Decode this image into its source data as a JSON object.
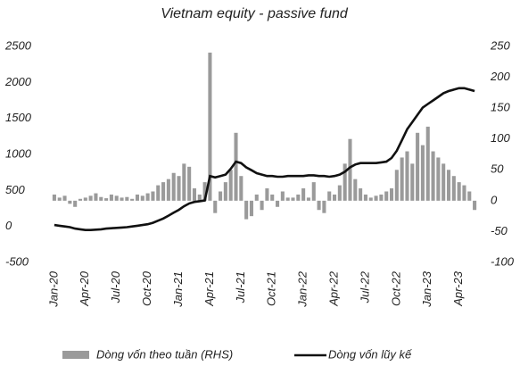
{
  "chart_data": {
    "type": "combo",
    "title": "Vietnam equity - passive fund",
    "categories": [
      "Jan-20",
      null,
      null,
      null,
      null,
      null,
      "Apr-20",
      null,
      null,
      null,
      null,
      null,
      "Jul-20",
      null,
      null,
      null,
      null,
      null,
      "Oct-20",
      null,
      null,
      null,
      null,
      null,
      "Jan-21",
      null,
      null,
      null,
      null,
      null,
      "Apr-21",
      null,
      null,
      null,
      null,
      null,
      "Jul-21",
      null,
      null,
      null,
      null,
      null,
      "Oct-21",
      null,
      null,
      null,
      null,
      null,
      "Jan-22",
      null,
      null,
      null,
      null,
      null,
      "Apr-22",
      null,
      null,
      null,
      null,
      null,
      "Jul-22",
      null,
      null,
      null,
      null,
      null,
      "Oct-22",
      null,
      null,
      null,
      null,
      null,
      "Jan-23",
      null,
      null,
      null,
      null,
      null,
      "Apr-23",
      null,
      null,
      null
    ],
    "series": [
      {
        "name": "Dòng vốn theo tuần (RHS)",
        "type": "bar",
        "axis": "y2",
        "color": "#9a9a9a",
        "values": [
          10,
          5,
          8,
          -5,
          -10,
          3,
          5,
          8,
          12,
          6,
          4,
          10,
          8,
          5,
          6,
          3,
          10,
          8,
          12,
          15,
          25,
          30,
          35,
          45,
          40,
          60,
          55,
          20,
          10,
          30,
          240,
          -20,
          15,
          30,
          50,
          110,
          40,
          -30,
          -25,
          10,
          -15,
          20,
          10,
          -10,
          15,
          5,
          5,
          10,
          20,
          5,
          30,
          -15,
          -20,
          15,
          10,
          25,
          60,
          100,
          35,
          20,
          10,
          5,
          8,
          10,
          15,
          20,
          50,
          70,
          80,
          60,
          110,
          90,
          120,
          80,
          70,
          60,
          50,
          40,
          30,
          25,
          15,
          -15
        ]
      },
      {
        "name": "Dòng vốn lũy kế",
        "type": "line",
        "color": "#111111",
        "values": [
          20,
          10,
          0,
          -10,
          -30,
          -40,
          -50,
          -50,
          -45,
          -40,
          -30,
          -25,
          -20,
          -15,
          -10,
          0,
          10,
          20,
          30,
          50,
          80,
          110,
          150,
          190,
          230,
          280,
          320,
          340,
          350,
          360,
          700,
          680,
          700,
          720,
          800,
          900,
          880,
          820,
          780,
          740,
          720,
          700,
          700,
          690,
          690,
          700,
          700,
          700,
          700,
          710,
          710,
          700,
          700,
          690,
          700,
          720,
          760,
          820,
          860,
          880,
          880,
          880,
          880,
          890,
          900,
          950,
          1050,
          1200,
          1350,
          1450,
          1550,
          1650,
          1700,
          1750,
          1800,
          1850,
          1880,
          1900,
          1920,
          1920,
          1900,
          1880
        ]
      }
    ],
    "ylim": [
      -500,
      2500
    ],
    "yticks": [
      -500,
      0,
      500,
      1000,
      1500,
      2000,
      2500
    ],
    "y2lim": [
      -100,
      250
    ],
    "y2ticks": [
      -100,
      -50,
      0,
      50,
      100,
      150,
      200,
      250
    ],
    "grid": false
  }
}
